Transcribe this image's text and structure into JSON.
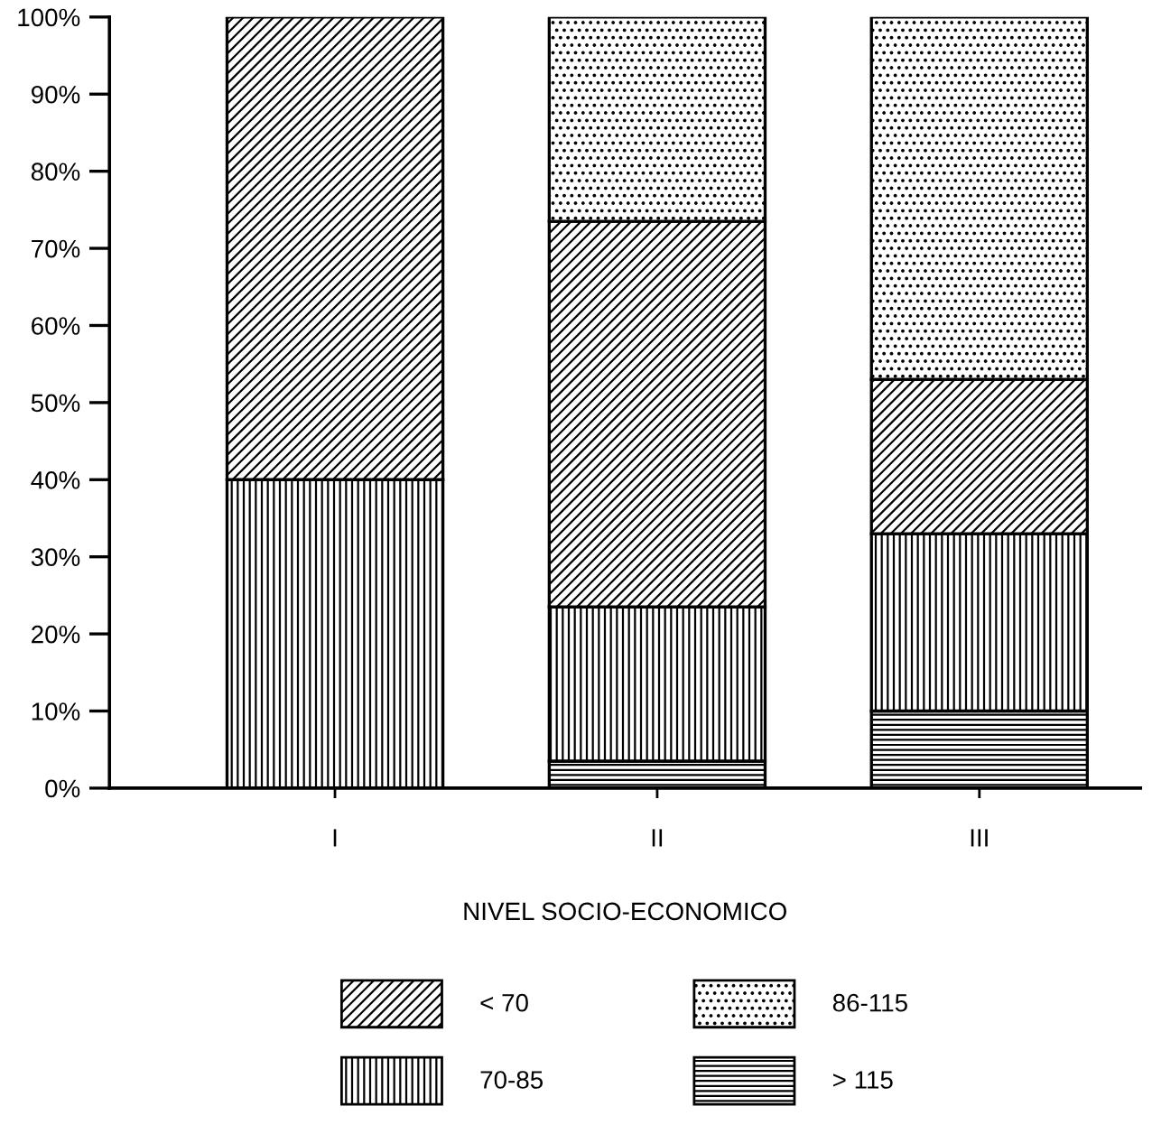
{
  "chart_data": {
    "type": "bar",
    "stacked": true,
    "xlabel": "NIVEL SOCIO-ECONOMICO",
    "categories": [
      "I",
      "II",
      "III"
    ],
    "series": [
      {
        "name": "> 115",
        "color": "#000000",
        "values": [
          0,
          3.5,
          10
        ]
      },
      {
        "name": "70-85",
        "color": "#000000",
        "values": [
          40,
          20,
          23
        ]
      },
      {
        "name": "< 70",
        "color": "#000000",
        "values": [
          60,
          50,
          20
        ]
      },
      {
        "name": "86-115",
        "color": "#000000",
        "values": [
          0,
          26.5,
          47
        ]
      }
    ],
    "ylim": [
      0,
      100
    ],
    "yticks": [
      {
        "value": 0,
        "label": "0%"
      },
      {
        "value": 10,
        "label": "10%"
      },
      {
        "value": 20,
        "label": "20%"
      },
      {
        "value": 30,
        "label": "30%"
      },
      {
        "value": 40,
        "label": "40%"
      },
      {
        "value": 50,
        "label": "50%"
      },
      {
        "value": 60,
        "label": "60%"
      },
      {
        "value": 70,
        "label": "70%"
      },
      {
        "value": 80,
        "label": "80%"
      },
      {
        "value": 90,
        "label": "90%"
      },
      {
        "value": 100,
        "label": "100%"
      }
    ],
    "grid": false,
    "legend": "bottom"
  }
}
